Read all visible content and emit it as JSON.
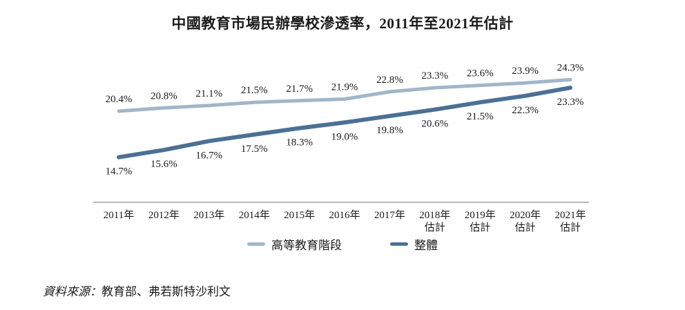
{
  "title": "中國教育市場民辦學校滲透率，2011年至2021年估計",
  "source": {
    "prefix": "資料來源：",
    "text": "教育部、弗若斯特沙利文"
  },
  "colors": {
    "higher_education_line": "#a2b6c9",
    "overall_line": "#4c7095",
    "axis_line": "#8c8c8c",
    "text": "#1a1a1a"
  },
  "chart_data": {
    "type": "line",
    "title": "中國教育市場民辦學校滲透率，2011年至2021年估計",
    "categories": [
      "2011年",
      "2012年",
      "2013年",
      "2014年",
      "2015年",
      "2016年",
      "2017年",
      "2018年",
      "2019年",
      "2020年",
      "2021年"
    ],
    "category_sublabels": [
      "",
      "",
      "",
      "",
      "",
      "",
      "",
      "估計",
      "估計",
      "估計",
      "估計"
    ],
    "series": [
      {
        "name": "高等教育階段",
        "color": "#a2b6c9",
        "label_position": "above",
        "values": [
          20.4,
          20.8,
          21.1,
          21.5,
          21.7,
          21.9,
          22.8,
          23.3,
          23.6,
          23.9,
          24.3
        ]
      },
      {
        "name": "整體",
        "color": "#4c7095",
        "label_position": "below",
        "values": [
          14.7,
          15.6,
          16.7,
          17.5,
          18.3,
          19.0,
          19.8,
          20.6,
          21.5,
          22.3,
          23.3
        ]
      }
    ],
    "value_suffix": "%",
    "xlabel": "",
    "ylabel": "",
    "ylim": [
      13,
      26
    ],
    "grid": false,
    "legend_position": "bottom",
    "data_labels": true
  }
}
